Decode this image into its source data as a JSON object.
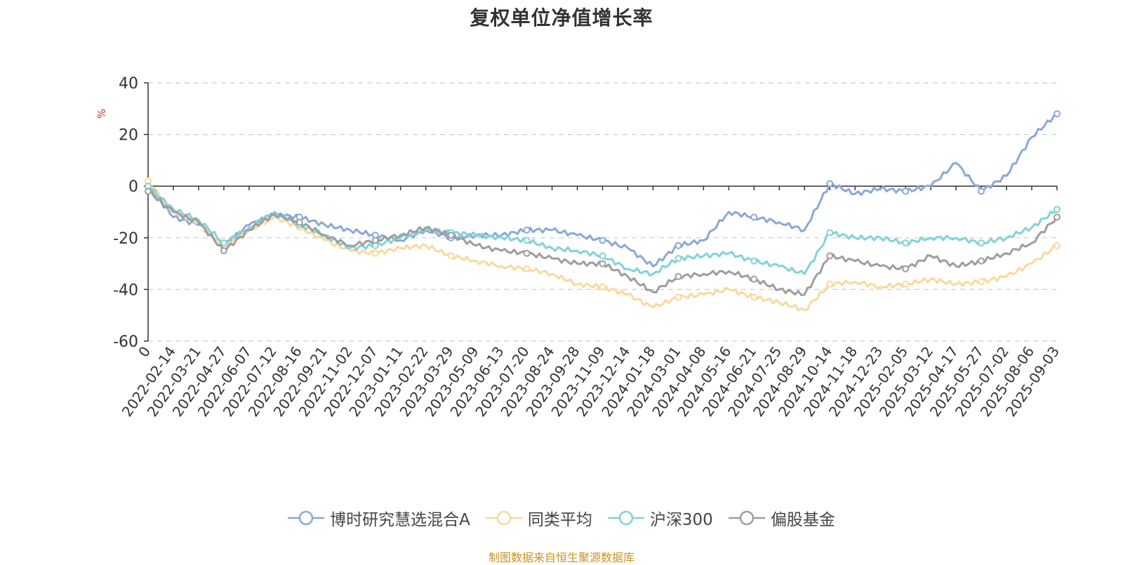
{
  "title": "复权单位净值增长率",
  "source_note": "制图数据来自恒生聚源数据库",
  "chart_data": {
    "type": "line",
    "title": "复权单位净值增长率",
    "ylabel": "%",
    "ylim": [
      -60,
      40
    ],
    "yticks": [
      40,
      20,
      0,
      -20,
      -40,
      -60
    ],
    "grid": "horizontal-dashed",
    "legend_position": "bottom",
    "x_labels": [
      "0",
      "2022-02-14",
      "2022-03-21",
      "2022-04-27",
      "2022-06-07",
      "2022-07-12",
      "2022-08-16",
      "2022-09-21",
      "2022-11-02",
      "2022-12-07",
      "2023-01-11",
      "2023-02-22",
      "2023-03-29",
      "2023-05-09",
      "2023-06-13",
      "2023-07-20",
      "2023-08-24",
      "2023-09-28",
      "2023-11-09",
      "2023-12-14",
      "2024-01-18",
      "2024-03-01",
      "2024-04-08",
      "2024-05-16",
      "2024-06-21",
      "2024-07-25",
      "2024-08-29",
      "2024-10-14",
      "2024-11-18",
      "2024-12-23",
      "2025-02-05",
      "2025-03-12",
      "2025-04-17",
      "2025-05-27",
      "2025-07-02",
      "2025-08-06",
      "2025-09-03"
    ],
    "series": [
      {
        "name": "博时研究慧选混合A",
        "color": "#8aa8d8",
        "values": [
          0,
          -12,
          -15,
          -23,
          -15,
          -11,
          -12,
          -15,
          -17,
          -19,
          -21,
          -17,
          -20,
          -19,
          -19,
          -17,
          -17,
          -19,
          -21,
          -24,
          -31,
          -23,
          -21,
          -10,
          -12,
          -14,
          -17,
          1,
          -3,
          -1,
          -2,
          0,
          9,
          -2,
          4,
          19,
          28
        ]
      },
      {
        "name": "同类平均",
        "color": "#fad99a",
        "values": [
          2,
          -10,
          -14,
          -24,
          -17,
          -12,
          -16,
          -21,
          -25,
          -26,
          -24,
          -23,
          -27,
          -29,
          -31,
          -32,
          -34,
          -38,
          -39,
          -42,
          -47,
          -43,
          -42,
          -40,
          -43,
          -45,
          -48,
          -38,
          -37,
          -39,
          -38,
          -36,
          -38,
          -37,
          -35,
          -30,
          -23
        ]
      },
      {
        "name": "沪深300",
        "color": "#82d2d8",
        "values": [
          0,
          -9,
          -13,
          -22,
          -16,
          -10,
          -15,
          -19,
          -24,
          -23,
          -20,
          -17,
          -18,
          -19,
          -20,
          -21,
          -24,
          -25,
          -27,
          -32,
          -34,
          -28,
          -27,
          -26,
          -29,
          -31,
          -34,
          -18,
          -20,
          -20,
          -22,
          -20,
          -20,
          -22,
          -20,
          -16,
          -9
        ]
      },
      {
        "name": "偏股基金",
        "color": "#9e9e9e",
        "values": [
          -2,
          -10,
          -14,
          -25,
          -17,
          -11,
          -14,
          -19,
          -23,
          -21,
          -19,
          -16,
          -19,
          -23,
          -25,
          -26,
          -28,
          -30,
          -30,
          -35,
          -41,
          -35,
          -34,
          -33,
          -36,
          -40,
          -42,
          -27,
          -29,
          -31,
          -32,
          -27,
          -31,
          -29,
          -26,
          -22,
          -12
        ]
      }
    ]
  }
}
